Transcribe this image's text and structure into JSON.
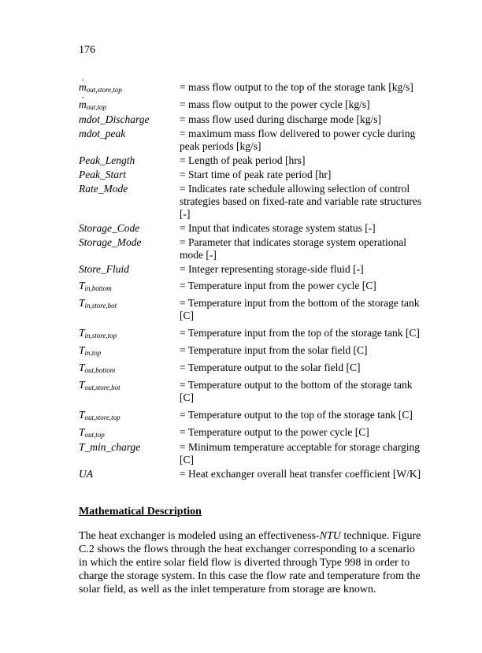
{
  "page_number": "176",
  "defs": [
    {
      "sym": "<span class='mdot'>m</span><sub>out,store,top</sub>",
      "desc": "= mass flow output to the top of the storage tank [kg/s]",
      "tall": true
    },
    {
      "sym": "<span class='mdot'>m</span><sub>out,top</sub>",
      "desc": "= mass flow output to the power cycle [kg/s]",
      "tall": true
    },
    {
      "sym": "mdot_Discharge",
      "desc": "= mass flow used during discharge mode [kg/s]"
    },
    {
      "sym": "mdot_peak",
      "desc": "= maximum mass flow delivered to power cycle during peak periods [kg/s]"
    },
    {
      "sym": "Peak_Length",
      "desc": "= Length of peak period [hrs]"
    },
    {
      "sym": "Peak_Start",
      "desc": "= Start time of peak rate period [hr]"
    },
    {
      "sym": "Rate_Mode",
      "desc": "= Indicates rate schedule allowing selection of control strategies based on fixed-rate and variable rate structures [-]"
    },
    {
      "sym": "Storage_Code",
      "desc": "= Input that indicates storage system status [-]"
    },
    {
      "sym": "Storage_Mode",
      "desc": "= Parameter that indicates storage system operational mode [-]"
    },
    {
      "sym": "Store_Fluid",
      "desc": "= Integer representing storage-side fluid [-]"
    },
    {
      "sym": "T<sub>in,bottom</sub>",
      "desc": "= Temperature input from the power cycle [C]",
      "tall": true
    },
    {
      "sym": "T<sub>in,store,bot</sub>",
      "desc": "= Temperature input from the bottom of the storage tank [C]",
      "tall": true
    },
    {
      "sym": "T<sub>in,store,top</sub>",
      "desc": "= Temperature input from the top of the storage tank [C]",
      "tall": true
    },
    {
      "sym": "T<sub>in,top</sub>",
      "desc": "= Temperature input from the solar field [C]",
      "tall": true
    },
    {
      "sym": "T<sub>out,bottom</sub>",
      "desc": "= Temperature output to the solar field [C]",
      "tall": true
    },
    {
      "sym": "T<sub>out,store,bot</sub>",
      "desc": "= Temperature output to the bottom of the storage tank [C]",
      "tall": true
    },
    {
      "sym": "T<sub>out,store,top</sub>",
      "desc": "= Temperature output to the top of the storage tank [C]",
      "tall": true
    },
    {
      "sym": "T<sub>out,top</sub>",
      "desc": "= Temperature output to the power cycle [C]",
      "tall": true
    },
    {
      "sym": "T_min_charge",
      "desc": "= Minimum temperature acceptable for storage charging [C]"
    },
    {
      "sym": "UA",
      "desc": "= Heat exchanger overall heat transfer coefficient [W/K]"
    }
  ],
  "section_heading": "Mathematical Description",
  "paragraph_html": "The heat exchanger is modeled using an effectiveness-<span class='ital'>NTU</span> technique.  Figure C.2 shows the flows through the heat exchanger corresponding to a scenario in which the entire solar field flow is diverted through Type 998 in order to charge the storage system.  In this case the flow rate and temperature from the solar field, as well as the inlet temperature from storage are known."
}
